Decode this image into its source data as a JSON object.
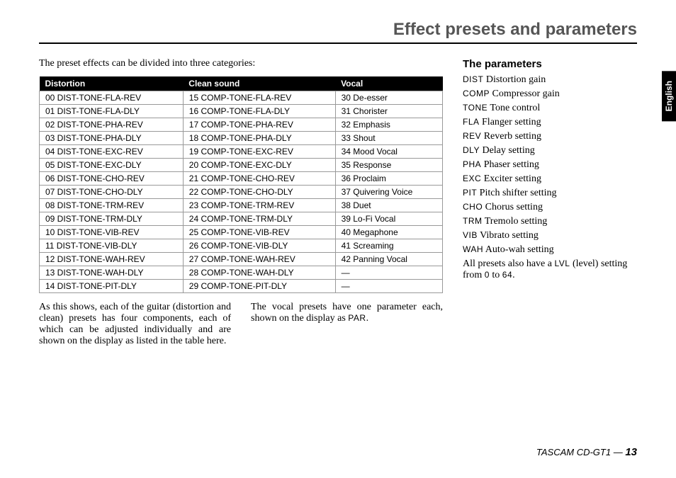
{
  "header": {
    "title": "Effect presets and parameters"
  },
  "intro": "The preset effects can be divided into three categories:",
  "table": {
    "headers": [
      "Distortion",
      "Clean sound",
      "Vocal"
    ],
    "rows": [
      [
        "00 DIST-TONE-FLA-REV",
        "15 COMP-TONE-FLA-REV",
        "30 De-esser"
      ],
      [
        "01 DIST-TONE-FLA-DLY",
        "16 COMP-TONE-FLA-DLY",
        "31 Chorister"
      ],
      [
        "02 DIST-TONE-PHA-REV",
        "17 COMP-TONE-PHA-REV",
        "32 Emphasis"
      ],
      [
        "03 DIST-TONE-PHA-DLY",
        "18 COMP-TONE-PHA-DLY",
        "33 Shout"
      ],
      [
        "04 DIST-TONE-EXC-REV",
        "19 COMP-TONE-EXC-REV",
        "34 Mood Vocal"
      ],
      [
        "05 DIST-TONE-EXC-DLY",
        "20 COMP-TONE-EXC-DLY",
        "35 Response"
      ],
      [
        "06 DIST-TONE-CHO-REV",
        "21 COMP-TONE-CHO-REV",
        "36 Proclaim"
      ],
      [
        "07 DIST-TONE-CHO-DLY",
        "22 COMP-TONE-CHO-DLY",
        "37 Quivering Voice"
      ],
      [
        "08 DIST-TONE-TRM-REV",
        "23 COMP-TONE-TRM-REV",
        "38 Duet"
      ],
      [
        "09 DIST-TONE-TRM-DLY",
        "24 COMP-TONE-TRM-DLY",
        "39 Lo-Fi Vocal"
      ],
      [
        "10 DIST-TONE-VIB-REV",
        "25 COMP-TONE-VIB-REV",
        "40 Megaphone"
      ],
      [
        "11 DIST-TONE-VIB-DLY",
        "26 COMP-TONE-VIB-DLY",
        "41 Screaming"
      ],
      [
        "12 DIST-TONE-WAH-REV",
        "27 COMP-TONE-WAH-REV",
        "42 Panning Vocal"
      ],
      [
        "13 DIST-TONE-WAH-DLY",
        "28 COMP-TONE-WAH-DLY",
        "—"
      ],
      [
        "14 DIST-TONE-PIT-DLY",
        "29 COMP-TONE-PIT-DLY",
        "—"
      ]
    ]
  },
  "below": {
    "left": "As this shows, each of the guitar (distortion and clean) presets has four components, each of which can be adjusted individually and are shown on the display as listed in the table here.",
    "right_pre": "The vocal presets have one parameter each, shown on the display as ",
    "right_code": "PAR",
    "right_post": "."
  },
  "params": {
    "title": "The parameters",
    "items": [
      {
        "code": "DIST",
        "desc": "Distortion gain"
      },
      {
        "code": "COMP",
        "desc": "Compressor gain"
      },
      {
        "code": "TONE",
        "desc": "Tone control"
      },
      {
        "code": "FLA",
        "desc": "Flanger setting"
      },
      {
        "code": "REV",
        "desc": "Reverb setting"
      },
      {
        "code": "DLY",
        "desc": "Delay setting"
      },
      {
        "code": "PHA",
        "desc": "Phaser setting"
      },
      {
        "code": "EXC",
        "desc": "Exciter setting"
      },
      {
        "code": "PIT",
        "desc": "Pitch shifter setting"
      },
      {
        "code": "CHO",
        "desc": "Chorus setting"
      },
      {
        "code": "TRM",
        "desc": "Tremolo setting"
      },
      {
        "code": "VIB",
        "desc": "Vibrato setting"
      },
      {
        "code": "WAH",
        "desc": "Auto-wah setting"
      }
    ],
    "footer_pre": "All presets also have a ",
    "footer_code": "LVL",
    "footer_mid": " (level) setting from ",
    "footer_code2": "0",
    "footer_mid2": " to ",
    "footer_code3": "64",
    "footer_post": "."
  },
  "sidetab": "English",
  "footer": {
    "model": "TASCAM CD-GT1 — ",
    "page": "13"
  }
}
